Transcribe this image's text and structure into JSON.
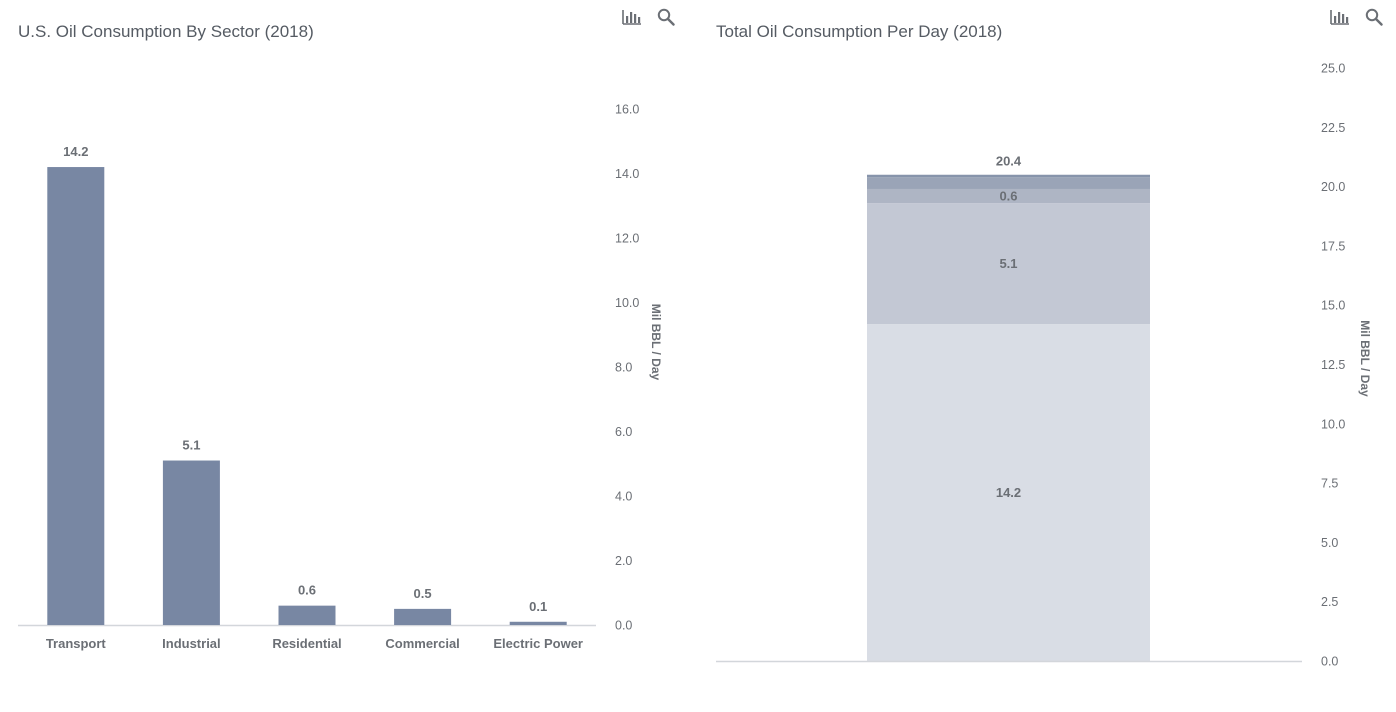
{
  "colors": {
    "title": "#555b63",
    "text": "#6b6f75",
    "bar": "#7887a3",
    "baseline": "#d3d6db",
    "icon": "#6b6f75",
    "stack": [
      "#d9dde5",
      "#c3c8d4",
      "#aeb5c4",
      "#9aa4b7",
      "#8794ab"
    ]
  },
  "toolbar": {
    "chart_icon": "bar-chart-icon",
    "search_icon": "search-icon"
  },
  "chart_data": [
    {
      "type": "bar",
      "title": "U.S. Oil Consumption By Sector (2018)",
      "xlabel": "",
      "ylabel": "Mil BBL / Day",
      "categories": [
        "Transport",
        "Industrial",
        "Residential",
        "Commercial",
        "Electric Power"
      ],
      "values": [
        14.2,
        5.1,
        0.6,
        0.5,
        0.1
      ],
      "data_labels": [
        "14.2",
        "5.1",
        "0.6",
        "0.5",
        "0.1"
      ],
      "ylim": [
        0,
        16
      ],
      "yticks": [
        "0.0",
        "2.0",
        "4.0",
        "6.0",
        "8.0",
        "10.0",
        "12.0",
        "14.0",
        "16.0"
      ],
      "y_axis_position": "right",
      "grid": false,
      "legend": false
    },
    {
      "type": "bar",
      "stacked": true,
      "title": "Total Oil Consumption Per Day (2018)",
      "xlabel": "",
      "ylabel": "Mil BBL / Day",
      "categories": [
        ""
      ],
      "series": [
        {
          "values": [
            14.2
          ],
          "label": "14.2"
        },
        {
          "values": [
            5.1
          ],
          "label": "5.1"
        },
        {
          "values": [
            0.6
          ],
          "label": "0.6"
        },
        {
          "values": [
            0.5
          ],
          "label": ""
        },
        {
          "values": [
            0.1
          ],
          "label": ""
        }
      ],
      "total_label": "20.4",
      "ylim": [
        0,
        25
      ],
      "yticks": [
        "0.0",
        "2.5",
        "5.0",
        "7.5",
        "10.0",
        "12.5",
        "15.0",
        "17.5",
        "20.0",
        "22.5",
        "25.0"
      ],
      "y_axis_position": "right",
      "grid": false,
      "legend": false
    }
  ]
}
